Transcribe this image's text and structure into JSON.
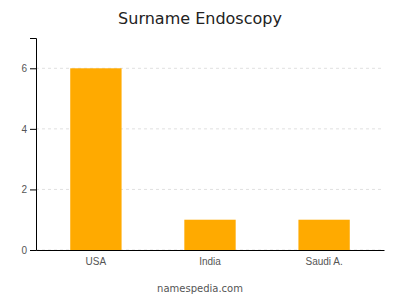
{
  "chart_data": {
    "type": "bar",
    "title": "Surname Endoscopy",
    "categories": [
      "USA",
      "India",
      "Saudi A."
    ],
    "values": [
      6,
      1,
      1
    ],
    "color": "#FFAA00",
    "ylim": [
      0,
      7
    ],
    "yticks": [
      0,
      2,
      4,
      6
    ],
    "grid": true,
    "annotations": [
      "namespedia.com"
    ]
  }
}
